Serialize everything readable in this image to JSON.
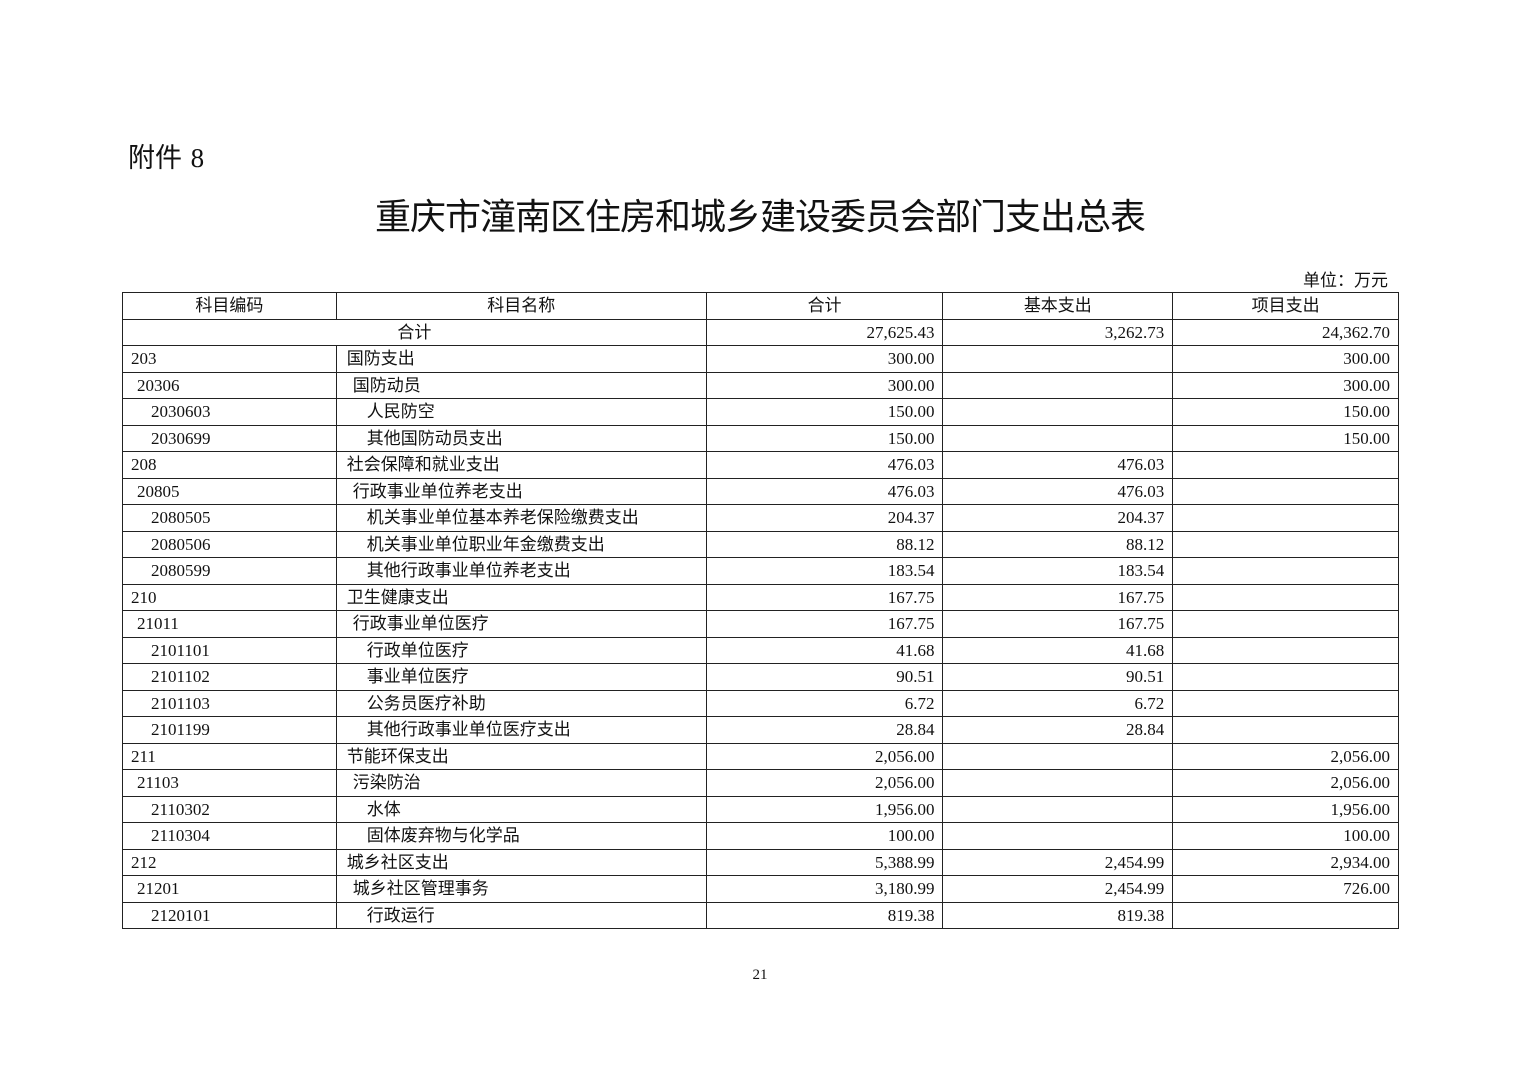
{
  "attachment": {
    "label": "附件",
    "number": "8"
  },
  "title": "重庆市潼南区住房和城乡建设委员会部门支出总表",
  "unit": "单位：万元",
  "table": {
    "headers": [
      "科目编码",
      "科目名称",
      "合计",
      "基本支出",
      "项目支出"
    ],
    "total": {
      "label": "合计",
      "total": "27,625.43",
      "basic": "3,262.73",
      "project": "24,362.70"
    },
    "rows": [
      {
        "code": "203",
        "name": "国防支出",
        "level": 1,
        "total": "300.00",
        "basic": "",
        "project": "300.00"
      },
      {
        "code": "20306",
        "name": "国防动员",
        "level": 2,
        "total": "300.00",
        "basic": "",
        "project": "300.00"
      },
      {
        "code": "2030603",
        "name": "人民防空",
        "level": 3,
        "total": "150.00",
        "basic": "",
        "project": "150.00"
      },
      {
        "code": "2030699",
        "name": "其他国防动员支出",
        "level": 3,
        "total": "150.00",
        "basic": "",
        "project": "150.00"
      },
      {
        "code": "208",
        "name": "社会保障和就业支出",
        "level": 1,
        "total": "476.03",
        "basic": "476.03",
        "project": ""
      },
      {
        "code": "20805",
        "name": "行政事业单位养老支出",
        "level": 2,
        "total": "476.03",
        "basic": "476.03",
        "project": ""
      },
      {
        "code": "2080505",
        "name": "机关事业单位基本养老保险缴费支出",
        "level": 3,
        "total": "204.37",
        "basic": "204.37",
        "project": ""
      },
      {
        "code": "2080506",
        "name": "机关事业单位职业年金缴费支出",
        "level": 3,
        "total": "88.12",
        "basic": "88.12",
        "project": ""
      },
      {
        "code": "2080599",
        "name": "其他行政事业单位养老支出",
        "level": 3,
        "total": "183.54",
        "basic": "183.54",
        "project": ""
      },
      {
        "code": "210",
        "name": "卫生健康支出",
        "level": 1,
        "total": "167.75",
        "basic": "167.75",
        "project": ""
      },
      {
        "code": "21011",
        "name": "行政事业单位医疗",
        "level": 2,
        "total": "167.75",
        "basic": "167.75",
        "project": ""
      },
      {
        "code": "2101101",
        "name": "行政单位医疗",
        "level": 3,
        "total": "41.68",
        "basic": "41.68",
        "project": ""
      },
      {
        "code": "2101102",
        "name": "事业单位医疗",
        "level": 3,
        "total": "90.51",
        "basic": "90.51",
        "project": ""
      },
      {
        "code": "2101103",
        "name": "公务员医疗补助",
        "level": 3,
        "total": "6.72",
        "basic": "6.72",
        "project": ""
      },
      {
        "code": "2101199",
        "name": "其他行政事业单位医疗支出",
        "level": 3,
        "total": "28.84",
        "basic": "28.84",
        "project": ""
      },
      {
        "code": "211",
        "name": "节能环保支出",
        "level": 1,
        "total": "2,056.00",
        "basic": "",
        "project": "2,056.00"
      },
      {
        "code": "21103",
        "name": "污染防治",
        "level": 2,
        "total": "2,056.00",
        "basic": "",
        "project": "2,056.00"
      },
      {
        "code": "2110302",
        "name": "水体",
        "level": 3,
        "total": "1,956.00",
        "basic": "",
        "project": "1,956.00"
      },
      {
        "code": "2110304",
        "name": "固体废弃物与化学品",
        "level": 3,
        "total": "100.00",
        "basic": "",
        "project": "100.00"
      },
      {
        "code": "212",
        "name": "城乡社区支出",
        "level": 1,
        "total": "5,388.99",
        "basic": "2,454.99",
        "project": "2,934.00"
      },
      {
        "code": "21201",
        "name": "城乡社区管理事务",
        "level": 2,
        "total": "3,180.99",
        "basic": "2,454.99",
        "project": "726.00"
      },
      {
        "code": "2120101",
        "name": "行政运行",
        "level": 3,
        "total": "819.38",
        "basic": "819.38",
        "project": ""
      }
    ]
  },
  "page_number": "21"
}
